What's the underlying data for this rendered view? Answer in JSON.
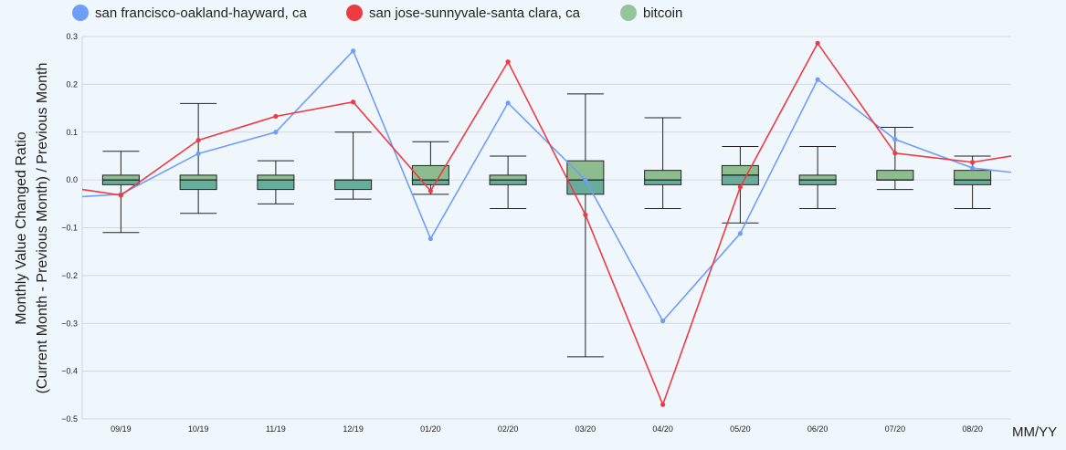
{
  "chart_data": {
    "type": "line",
    "title": "",
    "xlabel": "MM/YY",
    "ylabel_line1": "Monthly Value Changed Ratio",
    "ylabel_line2": "(Current Month - Previous Month) / Previous Month",
    "ylim": [
      -0.5,
      0.3
    ],
    "y_ticks": [
      {
        "v": 0.3,
        "label": "0.3"
      },
      {
        "v": 0.2,
        "label": "0.2"
      },
      {
        "v": 0.1,
        "label": "0.1"
      },
      {
        "v": 0.0,
        "label": "0.0"
      },
      {
        "v": -0.1,
        "label": "−0.1"
      },
      {
        "v": -0.2,
        "label": "−0.2"
      },
      {
        "v": -0.3,
        "label": "−0.3"
      },
      {
        "v": -0.4,
        "label": "−0.4"
      },
      {
        "v": -0.5,
        "label": "−0.5"
      }
    ],
    "grid": true,
    "legend_position": "top",
    "categories": [
      "09/19",
      "10/19",
      "11/19",
      "12/19",
      "01/20",
      "02/20",
      "03/20",
      "04/20",
      "05/20",
      "06/20",
      "07/20",
      "08/20"
    ],
    "series": [
      {
        "name": "san francisco-oakland-hayward, ca",
        "color": "#6f9ef8",
        "values": [
          -0.03,
          0.055,
          0.1,
          0.27,
          -0.123,
          0.161,
          0.0,
          -0.295,
          -0.112,
          0.21,
          0.085,
          0.025
        ],
        "edge_left": -0.035,
        "edge_right": 0.016
      },
      {
        "name": "san jose-sunnyvale-santa clara, ca",
        "color": "#ee3a43",
        "values": [
          -0.032,
          0.083,
          0.133,
          0.163,
          -0.023,
          0.247,
          -0.073,
          -0.47,
          -0.015,
          0.286,
          0.056,
          0.037
        ],
        "edge_left": -0.02,
        "edge_right": 0.05
      }
    ],
    "boxes": {
      "name": "bitcoin",
      "color": "#94c49a",
      "items": [
        {
          "min": -0.11,
          "q1": -0.01,
          "median": 0.0,
          "q3": 0.01,
          "max": 0.06
        },
        {
          "min": -0.07,
          "q1": -0.02,
          "median": 0.0,
          "q3": 0.01,
          "max": 0.16
        },
        {
          "min": -0.05,
          "q1": -0.02,
          "median": 0.0,
          "q3": 0.01,
          "max": 0.04
        },
        {
          "min": -0.04,
          "q1": -0.02,
          "median": 0.0,
          "q3": 0.0,
          "max": 0.1
        },
        {
          "min": -0.03,
          "q1": -0.01,
          "median": 0.0,
          "q3": 0.03,
          "max": 0.08
        },
        {
          "min": -0.06,
          "q1": -0.01,
          "median": 0.0,
          "q3": 0.01,
          "max": 0.05
        },
        {
          "min": -0.37,
          "q1": -0.03,
          "median": 0.0,
          "q3": 0.04,
          "max": 0.18
        },
        {
          "min": -0.06,
          "q1": -0.01,
          "median": 0.0,
          "q3": 0.02,
          "max": 0.13
        },
        {
          "min": -0.09,
          "q1": -0.01,
          "median": 0.01,
          "q3": 0.03,
          "max": 0.07
        },
        {
          "min": -0.06,
          "q1": -0.01,
          "median": 0.0,
          "q3": 0.01,
          "max": 0.07
        },
        {
          "min": -0.02,
          "q1": 0.0,
          "median": 0.0,
          "q3": 0.02,
          "max": 0.11
        },
        {
          "min": -0.06,
          "q1": -0.01,
          "median": 0.0,
          "q3": 0.02,
          "max": 0.05
        }
      ]
    }
  }
}
